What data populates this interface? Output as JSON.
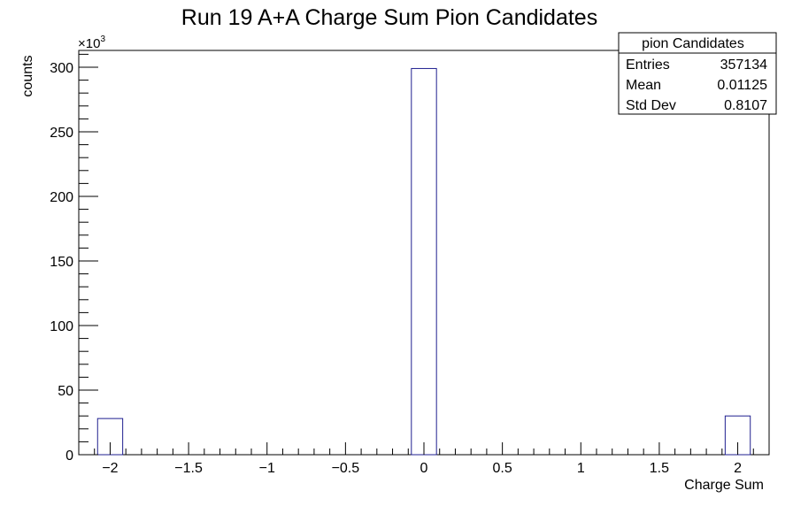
{
  "chart_data": {
    "type": "bar",
    "title": "Run 19 A+A Charge Sum Pion Candidates",
    "xlabel": "Charge Sum",
    "ylabel": "counts",
    "y_multiplier": "×10",
    "y_multiplier_exp": "3",
    "xlim": [
      -2.2,
      2.2
    ],
    "ylim": [
      0,
      313
    ],
    "x_ticks": [
      -2,
      -1.5,
      -1,
      -0.5,
      0,
      0.5,
      1,
      1.5,
      2
    ],
    "x_tick_labels": [
      "−2",
      "−1.5",
      "−1",
      "−0.5",
      "0",
      "0.5",
      "1",
      "1.5",
      "2"
    ],
    "y_ticks": [
      0,
      50,
      100,
      150,
      200,
      250,
      300
    ],
    "y_tick_labels": [
      "0",
      "50",
      "100",
      "150",
      "200",
      "250",
      "300"
    ],
    "bin_width": 0.16,
    "bins": [
      {
        "center": -2,
        "value": 28
      },
      {
        "center": 0,
        "value": 299
      },
      {
        "center": 2,
        "value": 30
      }
    ],
    "bar_color": "#1f1f8f",
    "grid": false,
    "legend_position": "top-right",
    "stats_box": {
      "name": "pion Candidates",
      "rows": [
        {
          "label": "Entries",
          "value": "357134"
        },
        {
          "label": "Mean",
          "value": "0.01125"
        },
        {
          "label": "Std Dev",
          "value": "0.8107"
        }
      ]
    }
  }
}
